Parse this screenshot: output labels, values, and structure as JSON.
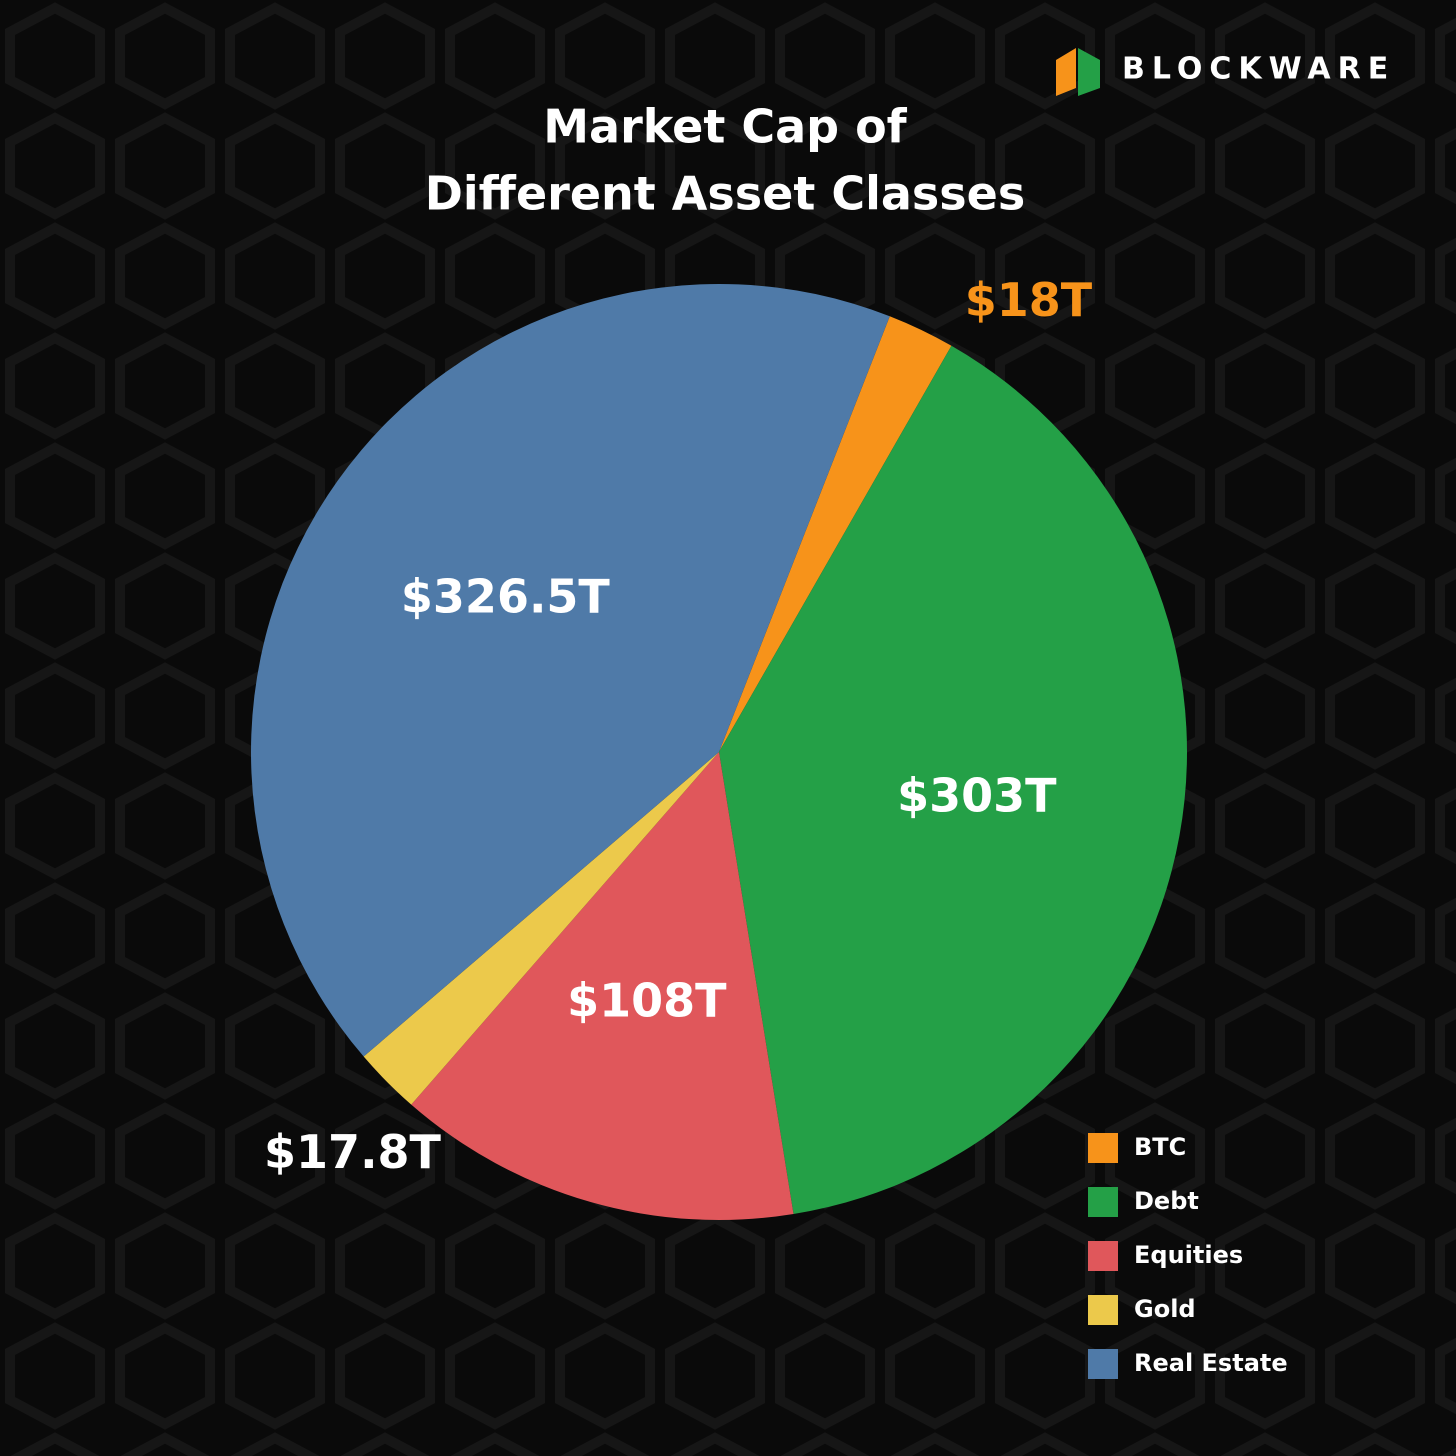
{
  "chart_data": {
    "type": "pie",
    "brand": "BLOCKWARE",
    "title": [
      "Market Cap of",
      "Different Asset Classes"
    ],
    "categories": [
      "BTC",
      "Debt",
      "Equities",
      "Gold",
      "Real Estate"
    ],
    "values": [
      18,
      303,
      108,
      17.8,
      326.5
    ],
    "value_labels": [
      "$18T",
      "$303T",
      "$108T",
      "$17.8T",
      "$326.5T"
    ],
    "colors": [
      "#f7931a",
      "#24a047",
      "#e0575b",
      "#ecc94b",
      "#4f7aa8"
    ],
    "label_colors": [
      "#f7931a",
      "#ffffff",
      "#ffffff",
      "#ffffff",
      "#ffffff"
    ],
    "legend": "bottom-right"
  }
}
